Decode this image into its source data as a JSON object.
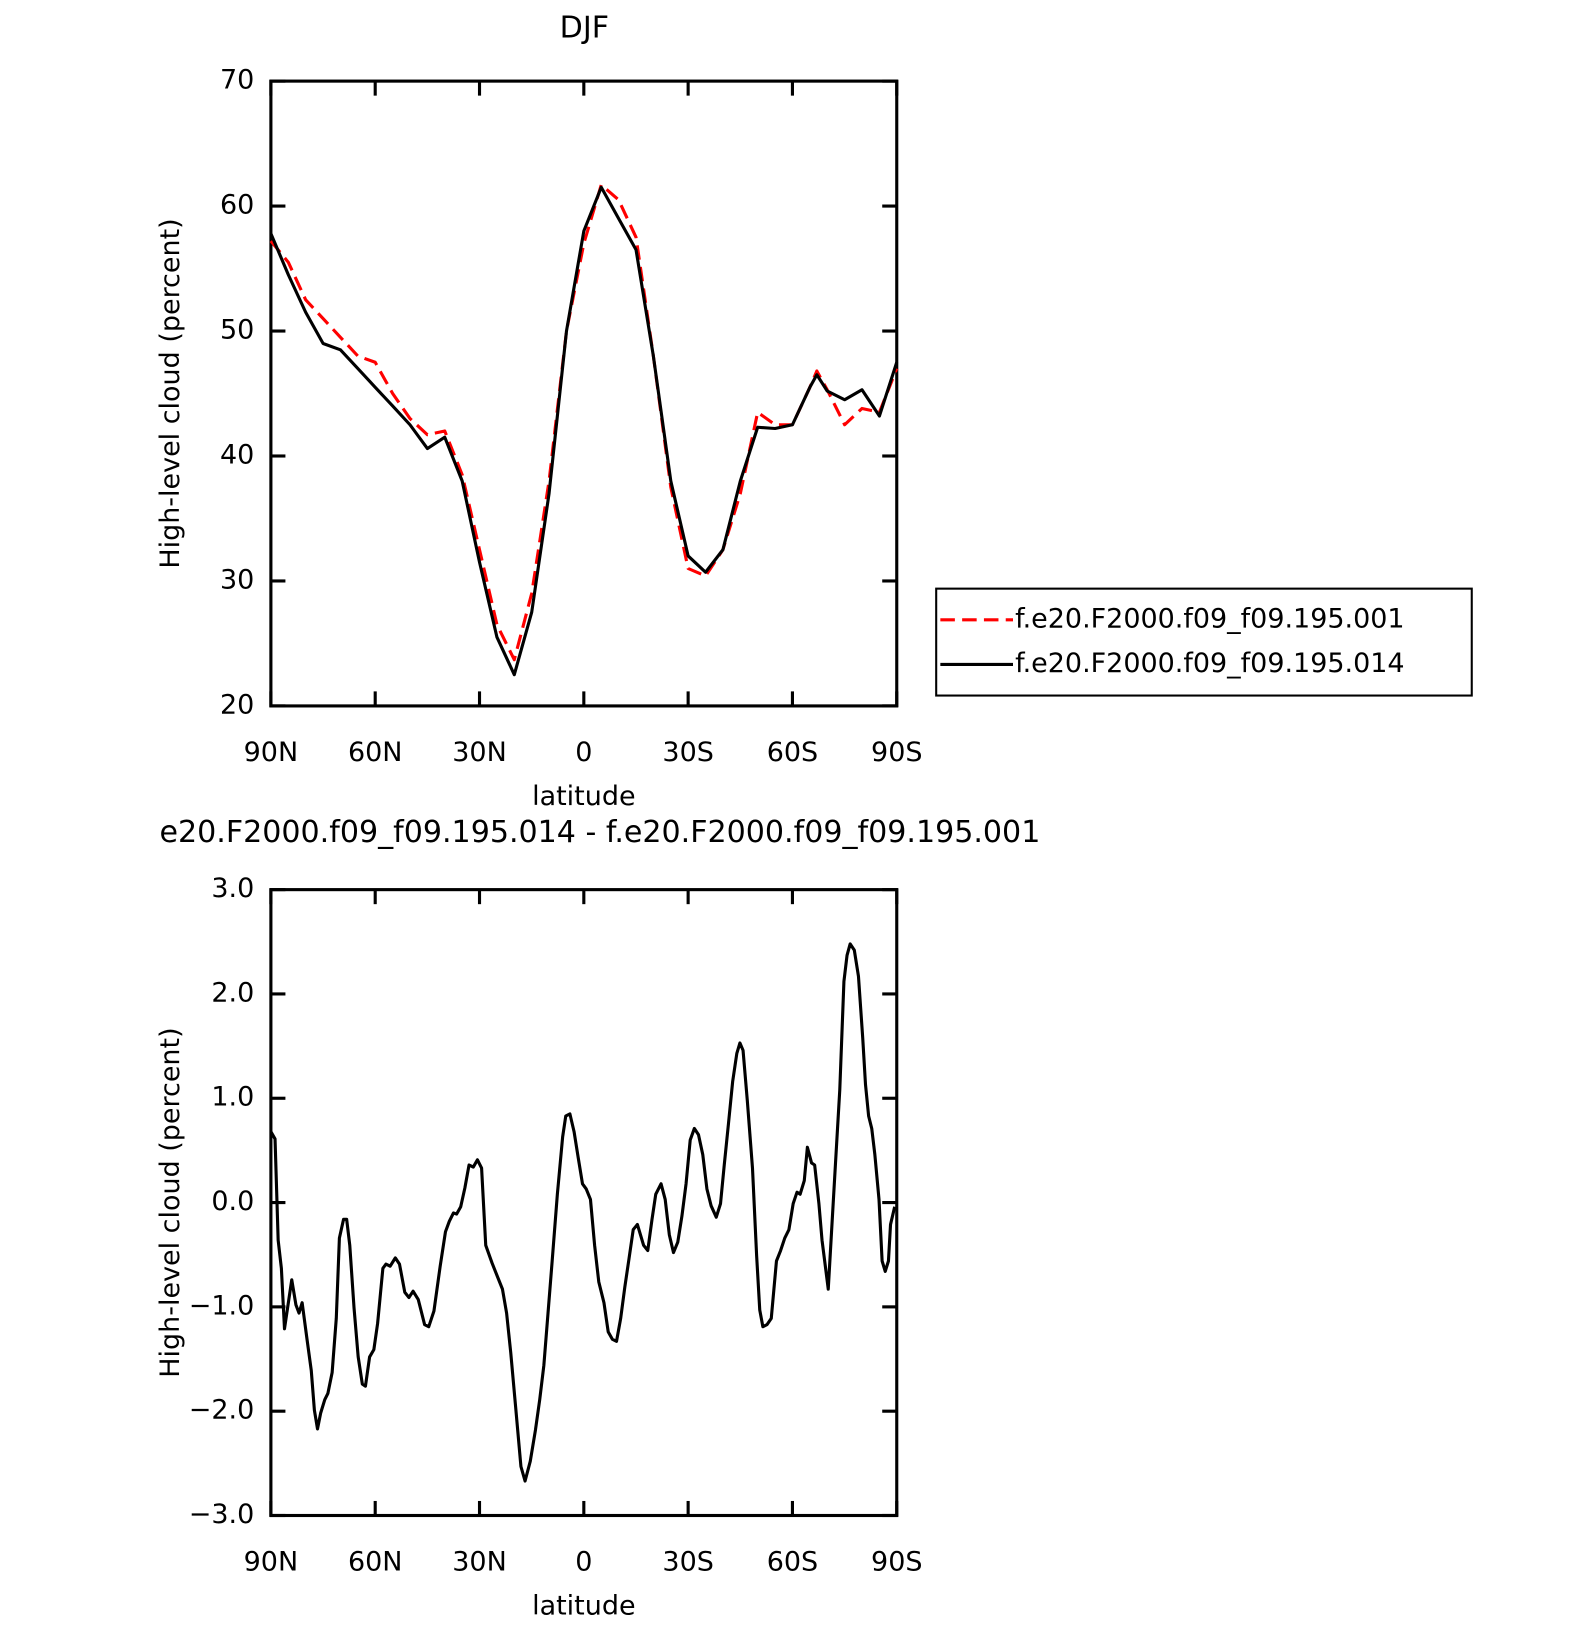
{
  "chart_data": [
    {
      "type": "line",
      "title": "DJF",
      "xlabel": "latitude",
      "ylabel": "High-level cloud (percent)",
      "x": [
        90,
        85,
        80,
        75,
        70,
        65,
        60,
        55,
        50,
        45,
        40,
        35,
        30,
        25,
        20,
        15,
        10,
        5,
        0,
        -5,
        -10,
        -15,
        -20,
        -25,
        -30,
        -35,
        -40,
        -45,
        -50,
        -55,
        -60,
        -65,
        -67,
        -70,
        -75,
        -80,
        -85,
        -90
      ],
      "series": [
        {
          "name": "f.e20.F2000.f09_f09.195.001",
          "color": "#ff0000",
          "dashed": true,
          "values": [
            57.2,
            55.5,
            52.5,
            51.0,
            49.5,
            48.0,
            47.5,
            45.0,
            43.0,
            41.7,
            42.0,
            38.5,
            32.5,
            26.5,
            23.7,
            29.0,
            38.0,
            50.0,
            57.0,
            61.7,
            60.5,
            57.5,
            48.0,
            37.5,
            31.0,
            30.4,
            32.5,
            37.0,
            43.5,
            42.5,
            42.5,
            45.5,
            46.8,
            45.3,
            42.5,
            43.8,
            43.5,
            47.0
          ]
        },
        {
          "name": "f.e20.F2000.f09_f09.195.014",
          "color": "#000000",
          "dashed": false,
          "values": [
            57.8,
            54.5,
            51.5,
            49.0,
            48.5,
            47.0,
            45.5,
            44.0,
            42.5,
            40.6,
            41.5,
            38.0,
            31.5,
            25.5,
            22.5,
            27.5,
            37.0,
            50.0,
            58.0,
            61.5,
            59.0,
            56.5,
            48.0,
            38.0,
            32.0,
            30.7,
            32.5,
            38.0,
            42.3,
            42.2,
            42.5,
            45.5,
            46.5,
            45.2,
            44.5,
            45.3,
            43.2,
            47.5
          ]
        }
      ],
      "xlim": [
        90,
        -90
      ],
      "xticks": [
        {
          "value": 90,
          "label": "90N"
        },
        {
          "value": 60,
          "label": "60N"
        },
        {
          "value": 30,
          "label": "30N"
        },
        0,
        {
          "value": -30,
          "label": "30S"
        },
        {
          "value": -60,
          "label": "60S"
        },
        {
          "value": -90,
          "label": "90S"
        }
      ],
      "ylim": [
        20,
        70
      ],
      "yticks": [
        20,
        30,
        40,
        50,
        60,
        70
      ],
      "legend": "right"
    },
    {
      "type": "line",
      "title": "e20.F2000.f09_f09.195.014 - f.e20.F2000.f09_f09.195.001",
      "xlabel": "latitude",
      "ylabel": "High-level cloud (percent)",
      "color": "#000000",
      "x": [
        90,
        88.8,
        87.9,
        87.0,
        86.1,
        84.0,
        82.8,
        81.9,
        81.0,
        79.6,
        78.4,
        77.5,
        76.6,
        75.7,
        74.5,
        73.6,
        72.4,
        71.2,
        70.3,
        69.1,
        68.2,
        67.3,
        66.1,
        64.9,
        63.7,
        62.8,
        61.6,
        60.4,
        59.3,
        57.8,
        56.9,
        55.7,
        54.2,
        53.0,
        51.5,
        50.3,
        49.1,
        47.6,
        45.8,
        44.6,
        43.1,
        41.3,
        39.8,
        38.7,
        37.5,
        36.6,
        35.4,
        34.2,
        33.0,
        31.8,
        30.6,
        29.4,
        28.2,
        26.4,
        24.6,
        23.4,
        22.2,
        21.0,
        19.6,
        18.1,
        16.9,
        15.4,
        13.9,
        12.7,
        11.5,
        10.3,
        9.1,
        7.6,
        6.1,
        5.2,
        4.0,
        2.8,
        1.6,
        0.4,
        -0.7,
        -1.9,
        -3.1,
        -4.3,
        -5.8,
        -7.0,
        -8.2,
        -9.4,
        -10.6,
        -11.8,
        -13.0,
        -14.2,
        -15.4,
        -17.2,
        -18.4,
        -19.6,
        -20.7,
        -22.2,
        -23.4,
        -24.6,
        -25.8,
        -27.0,
        -28.2,
        -29.4,
        -30.6,
        -31.8,
        -33.0,
        -34.2,
        -35.4,
        -36.6,
        -38.1,
        -39.3,
        -40.4,
        -41.6,
        -42.8,
        -44.0,
        -44.9,
        -45.8,
        -47.0,
        -48.5,
        -49.7,
        -50.6,
        -51.5,
        -52.7,
        -53.9,
        -55.4,
        -56.6,
        -57.8,
        -59.0,
        -60.2,
        -61.3,
        -62.2,
        -63.4,
        -64.3,
        -65.5,
        -66.4,
        -67.6,
        -68.5,
        -70.3,
        -71.2,
        -72.4,
        -73.6,
        -74.8,
        -75.7,
        -76.6,
        -77.8,
        -79.0,
        -80.2,
        -81.0,
        -81.9,
        -82.8,
        -83.7,
        -84.9,
        -85.8,
        -86.7,
        -87.6,
        -88.2,
        -89.4
      ],
      "values": [
        0.68,
        0.61,
        -0.36,
        -0.63,
        -1.21,
        -0.74,
        -0.98,
        -1.06,
        -0.96,
        -1.31,
        -1.61,
        -1.99,
        -2.17,
        -2.02,
        -1.89,
        -1.83,
        -1.63,
        -1.11,
        -0.34,
        -0.16,
        -0.16,
        -0.41,
        -1.01,
        -1.48,
        -1.74,
        -1.76,
        -1.48,
        -1.41,
        -1.16,
        -0.63,
        -0.59,
        -0.61,
        -0.53,
        -0.59,
        -0.86,
        -0.91,
        -0.85,
        -0.93,
        -1.17,
        -1.19,
        -1.04,
        -0.61,
        -0.28,
        -0.18,
        -0.1,
        -0.11,
        -0.04,
        0.14,
        0.36,
        0.34,
        0.41,
        0.33,
        -0.41,
        -0.58,
        -0.73,
        -0.83,
        -1.06,
        -1.44,
        -1.96,
        -2.53,
        -2.67,
        -2.48,
        -2.18,
        -1.89,
        -1.56,
        -1.06,
        -0.56,
        0.08,
        0.63,
        0.83,
        0.85,
        0.68,
        0.43,
        0.18,
        0.13,
        0.03,
        -0.41,
        -0.76,
        -0.96,
        -1.24,
        -1.31,
        -1.33,
        -1.11,
        -0.81,
        -0.54,
        -0.26,
        -0.21,
        -0.41,
        -0.46,
        -0.16,
        0.08,
        0.18,
        0.03,
        -0.31,
        -0.48,
        -0.38,
        -0.13,
        0.18,
        0.6,
        0.71,
        0.65,
        0.46,
        0.13,
        -0.03,
        -0.14,
        -0.01,
        0.36,
        0.76,
        1.16,
        1.43,
        1.53,
        1.46,
        0.98,
        0.33,
        -0.51,
        -1.03,
        -1.19,
        -1.17,
        -1.11,
        -0.56,
        -0.46,
        -0.34,
        -0.26,
        -0.01,
        0.1,
        0.08,
        0.21,
        0.53,
        0.38,
        0.36,
        -0.01,
        -0.36,
        -0.83,
        -0.31,
        0.38,
        1.08,
        2.12,
        2.37,
        2.48,
        2.42,
        2.17,
        1.58,
        1.13,
        0.83,
        0.71,
        0.46,
        0.03,
        -0.56,
        -0.66,
        -0.56,
        -0.21,
        -0.04
      ],
      "xlim": [
        90,
        -90
      ],
      "xticks": [
        {
          "value": 90,
          "label": "90N"
        },
        {
          "value": 60,
          "label": "60N"
        },
        {
          "value": 30,
          "label": "30N"
        },
        0,
        {
          "value": -30,
          "label": "30S"
        },
        {
          "value": -60,
          "label": "60S"
        },
        {
          "value": -90,
          "label": "90S"
        }
      ],
      "ylim": [
        -3,
        3
      ],
      "yticks": [
        {
          "value": -3,
          "label": "−3.0"
        },
        {
          "value": -2,
          "label": "−2.0"
        },
        {
          "value": -1,
          "label": "−1.0"
        },
        {
          "value": 0,
          "label": "0.0"
        },
        {
          "value": 1,
          "label": "1.0"
        },
        {
          "value": 2,
          "label": "2.0"
        },
        {
          "value": 3,
          "label": "3.0"
        }
      ]
    }
  ]
}
